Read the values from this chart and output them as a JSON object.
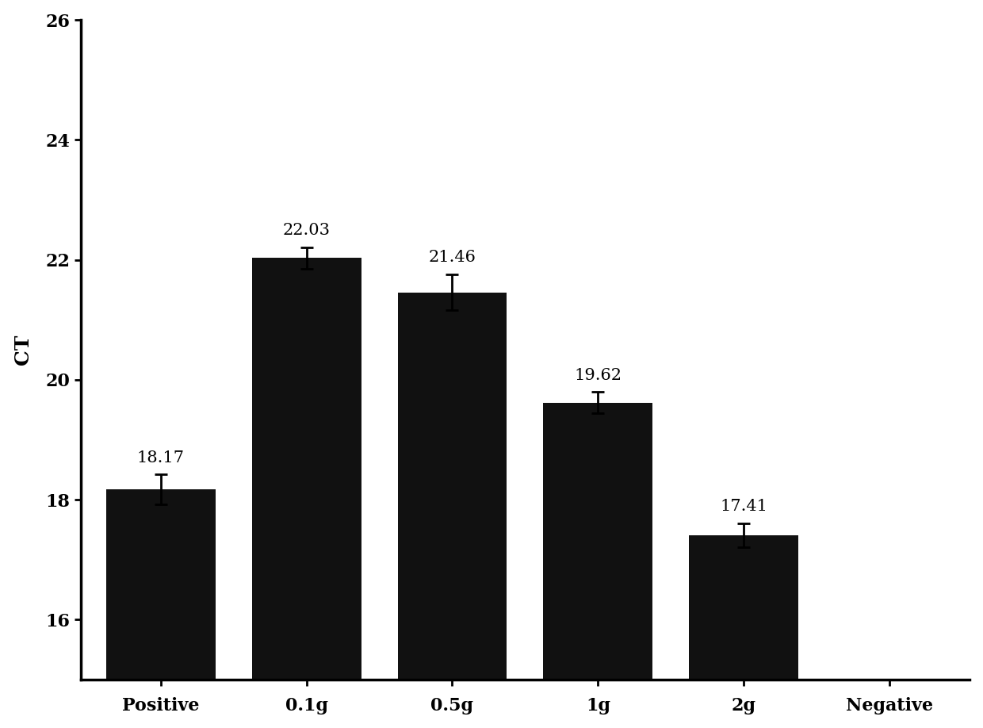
{
  "categories": [
    "Positive",
    "0.1g",
    "0.5g",
    "1g",
    "2g",
    "Negative"
  ],
  "values": [
    18.17,
    22.03,
    21.46,
    19.62,
    17.41,
    0
  ],
  "errors": [
    0.25,
    0.18,
    0.3,
    0.18,
    0.2,
    0
  ],
  "bar_color": "#111111",
  "ylabel": "CT",
  "ylim": [
    15,
    26
  ],
  "yticks": [
    16,
    18,
    20,
    22,
    24,
    26
  ],
  "bar_width": 0.75,
  "annotation_fontsize": 15,
  "label_fontsize": 18,
  "tick_fontsize": 16,
  "background_color": "#ffffff",
  "errorbar_linewidth": 2.0,
  "errorbar_capsize": 6,
  "errorbar_capthick": 2.0
}
